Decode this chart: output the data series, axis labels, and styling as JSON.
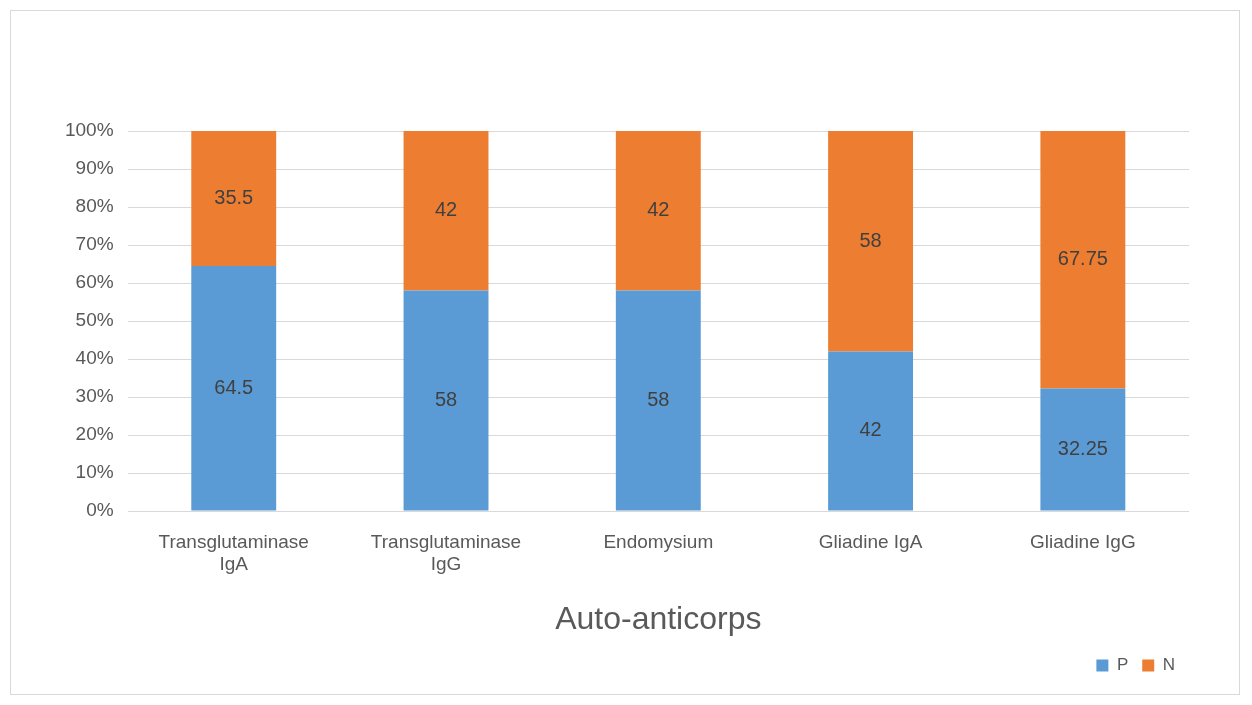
{
  "chart_data": {
    "type": "bar",
    "stacked": true,
    "xlabel": "Auto-anticorps",
    "categories": [
      "Transglutaminase IgA",
      "Transglutaminase IgG",
      "Endomysium",
      "Gliadine IgA",
      "Gliadine IgG"
    ],
    "series": [
      {
        "name": "P",
        "color": "#5b9bd5",
        "values": [
          64.5,
          58,
          58,
          42,
          32.25
        ]
      },
      {
        "name": "N",
        "color": "#ed7d31",
        "values": [
          35.5,
          42,
          42,
          58,
          67.75
        ]
      }
    ],
    "ylim": [
      0,
      100
    ],
    "yticks": [
      {
        "value": 0,
        "label": "0%"
      },
      {
        "value": 10,
        "label": "10%"
      },
      {
        "value": 20,
        "label": "20%"
      },
      {
        "value": 30,
        "label": "30%"
      },
      {
        "value": 40,
        "label": "40%"
      },
      {
        "value": 50,
        "label": "50%"
      },
      {
        "value": 60,
        "label": "60%"
      },
      {
        "value": 70,
        "label": "70%"
      },
      {
        "value": 80,
        "label": "80%"
      },
      {
        "value": 90,
        "label": "90%"
      },
      {
        "value": 100,
        "label": "100%"
      }
    ],
    "grid": "y",
    "legend": "bottom right",
    "data_labels": true
  }
}
